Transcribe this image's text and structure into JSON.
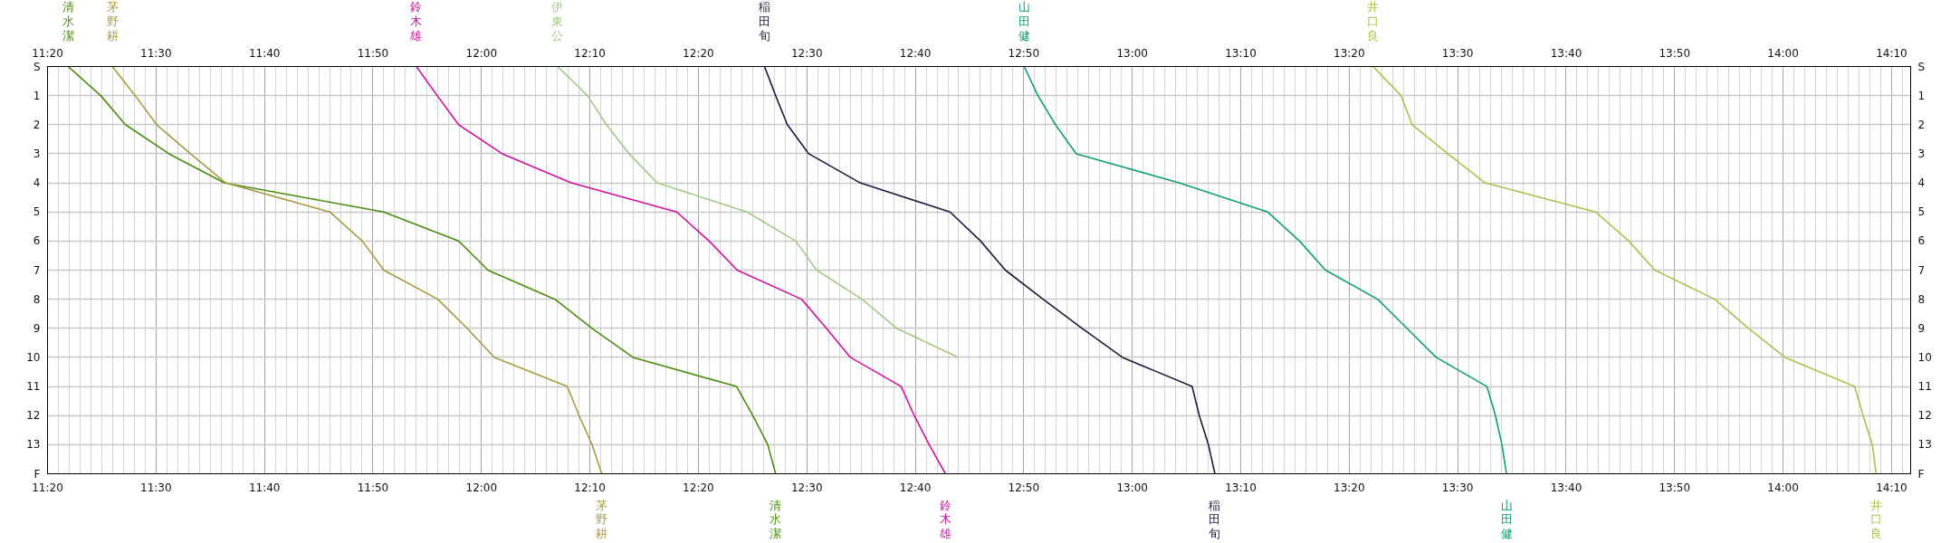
{
  "chart_data": {
    "type": "line",
    "xlim": [
      11.3333,
      14.196
    ],
    "x2lim": [
      11.3333,
      14.196
    ],
    "ylim": [
      14,
      0
    ],
    "y2lim": [
      14,
      0
    ],
    "xticks": [
      {
        "value": 11.3333,
        "label": "11:20"
      },
      {
        "value": 11.5,
        "label": "11:30"
      },
      {
        "value": 11.6667,
        "label": "11:40"
      },
      {
        "value": 11.8333,
        "label": "11:50"
      },
      {
        "value": 12,
        "label": "12:00"
      },
      {
        "value": 12.1667,
        "label": "12:10"
      },
      {
        "value": 12.3333,
        "label": "12:20"
      },
      {
        "value": 12.5,
        "label": "12:30"
      },
      {
        "value": 12.6667,
        "label": "12:40"
      },
      {
        "value": 12.8333,
        "label": "12:50"
      },
      {
        "value": 13,
        "label": "13:00"
      },
      {
        "value": 13.1667,
        "label": "13:10"
      },
      {
        "value": 13.3333,
        "label": "13:20"
      },
      {
        "value": 13.5,
        "label": "13:30"
      },
      {
        "value": 13.6667,
        "label": "13:40"
      },
      {
        "value": 13.8333,
        "label": "13:50"
      },
      {
        "value": 14,
        "label": "14:00"
      },
      {
        "value": 14.1667,
        "label": "14:10"
      }
    ],
    "x2ticks": [
      {
        "value": 11.3333,
        "label": "11:20"
      },
      {
        "value": 11.5,
        "label": "11:30"
      },
      {
        "value": 11.6667,
        "label": "11:40"
      },
      {
        "value": 11.8333,
        "label": "11:50"
      },
      {
        "value": 12,
        "label": "12:00"
      },
      {
        "value": 12.1667,
        "label": "12:10"
      },
      {
        "value": 12.3333,
        "label": "12:20"
      },
      {
        "value": 12.5,
        "label": "12:30"
      },
      {
        "value": 12.6667,
        "label": "12:40"
      },
      {
        "value": 12.8333,
        "label": "12:50"
      },
      {
        "value": 13,
        "label": "13:00"
      },
      {
        "value": 13.1667,
        "label": "13:10"
      },
      {
        "value": 13.3333,
        "label": "13:20"
      },
      {
        "value": 13.5,
        "label": "13:30"
      },
      {
        "value": 13.6667,
        "label": "13:40"
      },
      {
        "value": 13.8333,
        "label": "13:50"
      },
      {
        "value": 14,
        "label": "14:00"
      },
      {
        "value": 14.1667,
        "label": "14:10"
      }
    ],
    "yticks": [
      {
        "value": 0,
        "label": "S"
      },
      1,
      2,
      3,
      4,
      5,
      6,
      7,
      8,
      9,
      10,
      11,
      12,
      13,
      {
        "value": 14,
        "label": "F"
      }
    ],
    "y2ticks": [
      {
        "value": 0,
        "label": "S"
      },
      1,
      2,
      3,
      4,
      5,
      6,
      7,
      8,
      9,
      10,
      11,
      12,
      13,
      {
        "value": 14,
        "label": "F"
      }
    ],
    "grid": true,
    "series": [
      {
        "name": "清水潔",
        "color": "#4b8c0f",
        "x": [
          11.365,
          11.415,
          11.453,
          11.52,
          11.605,
          11.85,
          11.965,
          12.01,
          12.113,
          12.17,
          12.233,
          12.392,
          12.417,
          12.44,
          12.452
        ],
        "values": [
          0,
          1,
          2,
          3,
          4,
          5,
          6,
          7,
          8,
          9,
          10,
          11,
          12,
          13,
          14
        ]
      },
      {
        "name": "茅野耕",
        "color": "#a89a40",
        "x": [
          11.433,
          11.468,
          11.501,
          11.553,
          11.607,
          11.767,
          11.817,
          11.85,
          11.933,
          11.978,
          12.02,
          12.132,
          12.15,
          12.17,
          12.185
        ],
        "values": [
          0,
          1,
          2,
          3,
          4,
          5,
          6,
          7,
          8,
          9,
          10,
          11,
          12,
          13,
          14
        ]
      },
      {
        "name": "鈴木雄",
        "color": "#d0109c",
        "x": [
          11.9,
          11.932,
          11.965,
          12.032,
          12.138,
          12.3,
          12.35,
          12.393,
          12.492,
          12.53,
          12.567,
          12.645,
          12.665,
          12.688,
          12.713
        ],
        "values": [
          0,
          1,
          2,
          3,
          4,
          5,
          6,
          7,
          8,
          9,
          10,
          11,
          12,
          13,
          14
        ]
      },
      {
        "name": "伊東公",
        "color": "#a3c98a",
        "x": [
          12.117,
          12.163,
          12.192,
          12.227,
          12.27,
          12.408,
          12.483,
          12.515,
          12.585,
          12.638,
          12.733
        ],
        "values": [
          0,
          1,
          2,
          3,
          4,
          5,
          6,
          7,
          8,
          9,
          10
        ]
      },
      {
        "name": "稲田旬",
        "color": "#1c1a3c",
        "x": [
          12.435,
          12.452,
          12.47,
          12.503,
          12.582,
          12.72,
          12.767,
          12.805,
          12.863,
          12.923,
          12.985,
          13.092,
          13.103,
          13.117,
          13.127
        ],
        "values": [
          0,
          1,
          2,
          3,
          4,
          5,
          6,
          7,
          8,
          9,
          10,
          11,
          12,
          13,
          14
        ]
      },
      {
        "name": "山田健",
        "color": "#0f9e78",
        "x": [
          12.834,
          12.855,
          12.882,
          12.914,
          13.072,
          13.208,
          13.257,
          13.297,
          13.377,
          13.422,
          13.467,
          13.545,
          13.558,
          13.568,
          13.575
        ],
        "values": [
          0,
          1,
          2,
          3,
          4,
          5,
          6,
          7,
          8,
          9,
          10,
          11,
          12,
          13,
          14
        ]
      },
      {
        "name": "井口良",
        "color": "#b0bf4a",
        "x": [
          13.37,
          13.413,
          13.43,
          13.485,
          13.542,
          13.712,
          13.763,
          13.803,
          13.895,
          13.947,
          14.003,
          14.11,
          14.123,
          14.137,
          14.143
        ],
        "values": [
          0,
          1,
          2,
          3,
          4,
          5,
          6,
          7,
          8,
          9,
          10,
          11,
          12,
          13,
          14
        ]
      }
    ]
  }
}
